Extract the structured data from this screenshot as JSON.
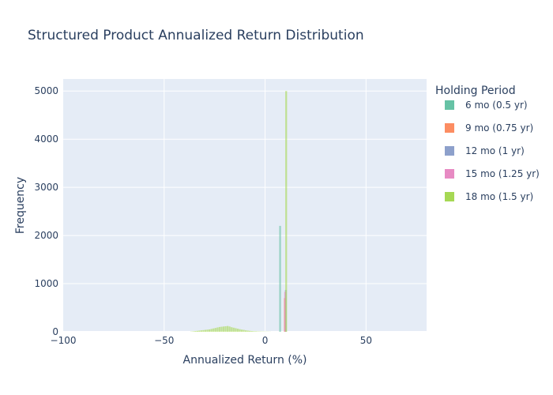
{
  "chart_data": {
    "type": "bar",
    "title": "Structured Product Annualized Return Distribution",
    "xlabel": "Annualized Return (%)",
    "ylabel": "Frequency",
    "xlim": [
      -100,
      80
    ],
    "ylim": [
      0,
      5250
    ],
    "x_ticks": [
      -100,
      -50,
      0,
      50
    ],
    "y_ticks": [
      0,
      1000,
      2000,
      3000,
      4000,
      5000
    ],
    "legend_title": "Holding Period",
    "legend_position": "right",
    "grid": true,
    "background": "#e5ecf6",
    "series": [
      {
        "name": "6 mo (0.5 yr)",
        "color": "#66c2a5",
        "bins": [
          {
            "x": 7.5,
            "y": 2200
          }
        ]
      },
      {
        "name": "9 mo (0.75 yr)",
        "color": "#fc8d62",
        "bins": [
          {
            "x": 9.8,
            "y": 700
          }
        ]
      },
      {
        "name": "12 mo (1 yr)",
        "color": "#8da0cb",
        "bins": [
          {
            "x": 10.3,
            "y": 870
          }
        ]
      },
      {
        "name": "15 mo (1.25 yr)",
        "color": "#e78ac3",
        "bins": [
          {
            "x": 10.0,
            "y": 830
          }
        ]
      },
      {
        "name": "18 mo (1.5 yr)",
        "color": "#a6d854",
        "bins": [
          {
            "x": -36.5,
            "y": 5
          },
          {
            "x": -35.5,
            "y": 10
          },
          {
            "x": -34.5,
            "y": 15
          },
          {
            "x": -33.5,
            "y": 20
          },
          {
            "x": -32.5,
            "y": 25
          },
          {
            "x": -31.5,
            "y": 30
          },
          {
            "x": -30.5,
            "y": 35
          },
          {
            "x": -29.5,
            "y": 40
          },
          {
            "x": -28.5,
            "y": 45
          },
          {
            "x": -27.5,
            "y": 50
          },
          {
            "x": -26.5,
            "y": 60
          },
          {
            "x": -25.5,
            "y": 70
          },
          {
            "x": -24.5,
            "y": 80
          },
          {
            "x": -23.5,
            "y": 90
          },
          {
            "x": -22.5,
            "y": 100
          },
          {
            "x": -21.5,
            "y": 105
          },
          {
            "x": -20.5,
            "y": 110
          },
          {
            "x": -19.5,
            "y": 115
          },
          {
            "x": -18.5,
            "y": 120
          },
          {
            "x": -17.5,
            "y": 110
          },
          {
            "x": -16.5,
            "y": 95
          },
          {
            "x": -15.5,
            "y": 85
          },
          {
            "x": -14.5,
            "y": 75
          },
          {
            "x": -13.5,
            "y": 65
          },
          {
            "x": -12.5,
            "y": 55
          },
          {
            "x": -11.5,
            "y": 45
          },
          {
            "x": -10.5,
            "y": 40
          },
          {
            "x": -9.5,
            "y": 30
          },
          {
            "x": -8.5,
            "y": 25
          },
          {
            "x": -7.5,
            "y": 20
          },
          {
            "x": -6.5,
            "y": 15
          },
          {
            "x": -5.5,
            "y": 12
          },
          {
            "x": -4.5,
            "y": 10
          },
          {
            "x": -3.5,
            "y": 8
          },
          {
            "x": -2.5,
            "y": 6
          },
          {
            "x": -1.5,
            "y": 5
          },
          {
            "x": -0.5,
            "y": 4
          },
          {
            "x": 0.5,
            "y": 3
          },
          {
            "x": 1.5,
            "y": 3
          },
          {
            "x": 2.5,
            "y": 2
          },
          {
            "x": 10.5,
            "y": 5000
          }
        ]
      }
    ]
  }
}
